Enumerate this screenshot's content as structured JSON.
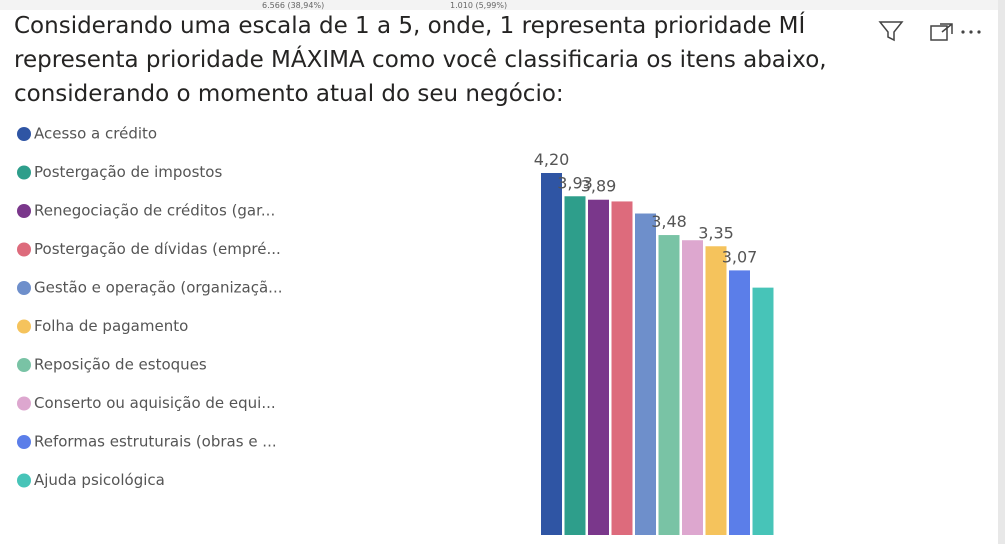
{
  "background_labels": [
    "6.566 (38,94%)",
    "1.010 (5,99%)"
  ],
  "chart_data": {
    "type": "bar",
    "title_lines": [
      "Considerando uma escala de 1 a 5, onde, 1 representa prioridade MÍ",
      "representa prioridade MÁXIMA como você classificaria os itens abaixo,",
      "considerando o momento atual do seu negócio:"
    ],
    "legend": [
      {
        "name": "Acesso a crédito",
        "color": "#2f55a4"
      },
      {
        "name": "Postergação de impostos",
        "color": "#2e9e8b"
      },
      {
        "name": "Renegociação de créditos (gar...",
        "color": "#7a378b"
      },
      {
        "name": "Postergação de dívidas (empré...",
        "color": "#dd6b7c"
      },
      {
        "name": "Gestão e operação (organizaçã...",
        "color": "#6e8fcb"
      },
      {
        "name": "Folha de pagamento",
        "color": "#f5c35c"
      },
      {
        "name": "Reposição de estoques",
        "color": "#79c3a5"
      },
      {
        "name": "Conserto ou aquisição de equi...",
        "color": "#dda7cf"
      },
      {
        "name": "Reformas estruturais (obras e ...",
        "color": "#5b7ee9"
      },
      {
        "name": "Ajuda psicológica",
        "color": "#47c4b8"
      }
    ],
    "values": [
      4.2,
      3.93,
      3.89,
      3.87,
      3.73,
      3.48,
      3.42,
      3.35,
      3.07,
      2.87
    ],
    "value_labels": [
      "4,20",
      "3,93",
      "3,89",
      null,
      null,
      "3,48",
      null,
      "3,35",
      "3,07",
      null
    ],
    "colors": [
      "#2f55a4",
      "#2e9e8b",
      "#7a378b",
      "#dd6b7c",
      "#6e8fcb",
      "#79c3a5",
      "#dda7cf",
      "#f5c35c",
      "#5b7ee9",
      "#47c4b8"
    ],
    "ylim": [
      0,
      4.2
    ]
  }
}
